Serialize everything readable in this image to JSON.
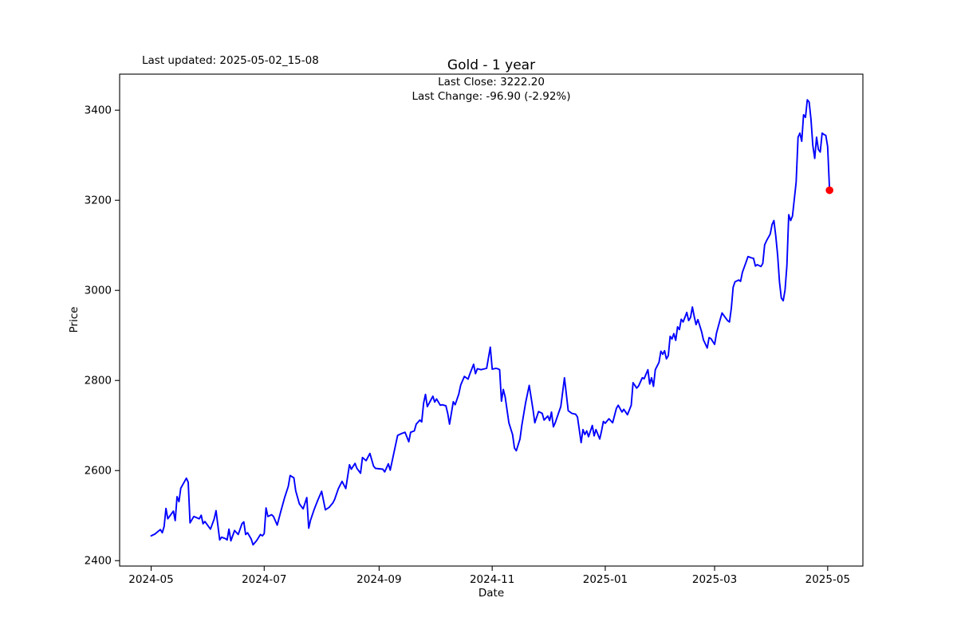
{
  "figure": {
    "last_updated": "Last updated: 2025-05-02_15-08",
    "title": "Gold - 1 year",
    "annotation_line1": "Last Close: 3222.20",
    "annotation_line2": "Last Change: -96.90 (-2.92%)"
  },
  "chart_data": {
    "type": "line",
    "title": "Gold - 1 year",
    "xlabel": "Date",
    "ylabel": "Price",
    "grid": false,
    "legend_position": "none",
    "line_color": "#0000ff",
    "marker_color": "#ff0000",
    "spine_color": "#000000",
    "ylim": [
      2388,
      3480
    ],
    "xlim_dates": [
      "2024-04-14",
      "2025-05-20"
    ],
    "y_ticks": [
      2400,
      2600,
      2800,
      3000,
      3200,
      3400
    ],
    "x_ticks": [
      {
        "date": "2024-05-01",
        "label": "2024-05"
      },
      {
        "date": "2024-07-01",
        "label": "2024-07"
      },
      {
        "date": "2024-09-01",
        "label": "2024-09"
      },
      {
        "date": "2024-11-01",
        "label": "2024-11"
      },
      {
        "date": "2025-01-01",
        "label": "2025-01"
      },
      {
        "date": "2025-03-01",
        "label": "2025-03"
      },
      {
        "date": "2025-05-01",
        "label": "2025-05"
      }
    ],
    "last_point": {
      "date": "2025-05-02",
      "price": 3222.2
    },
    "last_close": 3222.2,
    "last_change": -96.9,
    "last_change_pct": -2.92,
    "series": [
      {
        "name": "Gold",
        "points": [
          [
            "2024-05-01",
            2455
          ],
          [
            "2024-05-03",
            2459
          ],
          [
            "2024-05-06",
            2469
          ],
          [
            "2024-05-07",
            2462
          ],
          [
            "2024-05-08",
            2476
          ],
          [
            "2024-05-09",
            2516
          ],
          [
            "2024-05-10",
            2493
          ],
          [
            "2024-05-13",
            2510
          ],
          [
            "2024-05-14",
            2489
          ],
          [
            "2024-05-15",
            2542
          ],
          [
            "2024-05-16",
            2531
          ],
          [
            "2024-05-17",
            2561
          ],
          [
            "2024-05-20",
            2583
          ],
          [
            "2024-05-21",
            2574
          ],
          [
            "2024-05-22",
            2484
          ],
          [
            "2024-05-24",
            2498
          ],
          [
            "2024-05-27",
            2493
          ],
          [
            "2024-05-28",
            2501
          ],
          [
            "2024-05-29",
            2482
          ],
          [
            "2024-05-30",
            2487
          ],
          [
            "2024-06-02",
            2470
          ],
          [
            "2024-06-04",
            2492
          ],
          [
            "2024-06-05",
            2511
          ],
          [
            "2024-06-07",
            2446
          ],
          [
            "2024-06-08",
            2452
          ],
          [
            "2024-06-10",
            2449
          ],
          [
            "2024-06-11",
            2446
          ],
          [
            "2024-06-12",
            2470
          ],
          [
            "2024-06-13",
            2444
          ],
          [
            "2024-06-15",
            2467
          ],
          [
            "2024-06-17",
            2458
          ],
          [
            "2024-06-19",
            2482
          ],
          [
            "2024-06-20",
            2486
          ],
          [
            "2024-06-21",
            2458
          ],
          [
            "2024-06-22",
            2462
          ],
          [
            "2024-06-24",
            2448
          ],
          [
            "2024-06-25",
            2435
          ],
          [
            "2024-06-27",
            2445
          ],
          [
            "2024-06-29",
            2458
          ],
          [
            "2024-06-30",
            2455
          ],
          [
            "2024-07-01",
            2460
          ],
          [
            "2024-07-02",
            2517
          ],
          [
            "2024-07-03",
            2498
          ],
          [
            "2024-07-05",
            2502
          ],
          [
            "2024-07-06",
            2498
          ],
          [
            "2024-07-08",
            2479
          ],
          [
            "2024-07-10",
            2510
          ],
          [
            "2024-07-12",
            2540
          ],
          [
            "2024-07-14",
            2565
          ],
          [
            "2024-07-15",
            2589
          ],
          [
            "2024-07-17",
            2584
          ],
          [
            "2024-07-18",
            2555
          ],
          [
            "2024-07-20",
            2526
          ],
          [
            "2024-07-22",
            2515
          ],
          [
            "2024-07-24",
            2540
          ],
          [
            "2024-07-25",
            2472
          ],
          [
            "2024-07-26",
            2490
          ],
          [
            "2024-07-28",
            2514
          ],
          [
            "2024-07-30",
            2535
          ],
          [
            "2024-08-01",
            2554
          ],
          [
            "2024-08-03",
            2513
          ],
          [
            "2024-08-05",
            2518
          ],
          [
            "2024-08-07",
            2528
          ],
          [
            "2024-08-08",
            2536
          ],
          [
            "2024-08-10",
            2560
          ],
          [
            "2024-08-12",
            2576
          ],
          [
            "2024-08-14",
            2560
          ],
          [
            "2024-08-16",
            2613
          ],
          [
            "2024-08-17",
            2603
          ],
          [
            "2024-08-19",
            2616
          ],
          [
            "2024-08-20",
            2605
          ],
          [
            "2024-08-22",
            2594
          ],
          [
            "2024-08-23",
            2629
          ],
          [
            "2024-08-25",
            2622
          ],
          [
            "2024-08-26",
            2630
          ],
          [
            "2024-08-27",
            2638
          ],
          [
            "2024-08-29",
            2610
          ],
          [
            "2024-08-30",
            2605
          ],
          [
            "2024-09-01",
            2604
          ],
          [
            "2024-09-03",
            2603
          ],
          [
            "2024-09-04",
            2597
          ],
          [
            "2024-09-06",
            2615
          ],
          [
            "2024-09-07",
            2601
          ],
          [
            "2024-09-09",
            2640
          ],
          [
            "2024-09-11",
            2678
          ],
          [
            "2024-09-13",
            2682
          ],
          [
            "2024-09-15",
            2685
          ],
          [
            "2024-09-17",
            2664
          ],
          [
            "2024-09-18",
            2685
          ],
          [
            "2024-09-20",
            2688
          ],
          [
            "2024-09-21",
            2703
          ],
          [
            "2024-09-23",
            2712
          ],
          [
            "2024-09-24",
            2708
          ],
          [
            "2024-09-25",
            2750
          ],
          [
            "2024-09-26",
            2769
          ],
          [
            "2024-09-27",
            2742
          ],
          [
            "2024-09-30",
            2765
          ],
          [
            "2024-10-01",
            2752
          ],
          [
            "2024-10-02",
            2759
          ],
          [
            "2024-10-04",
            2745
          ],
          [
            "2024-10-05",
            2746
          ],
          [
            "2024-10-07",
            2744
          ],
          [
            "2024-10-08",
            2727
          ],
          [
            "2024-10-09",
            2703
          ],
          [
            "2024-10-11",
            2753
          ],
          [
            "2024-10-12",
            2746
          ],
          [
            "2024-10-14",
            2770
          ],
          [
            "2024-10-15",
            2790
          ],
          [
            "2024-10-17",
            2809
          ],
          [
            "2024-10-19",
            2803
          ],
          [
            "2024-10-20",
            2815
          ],
          [
            "2024-10-22",
            2836
          ],
          [
            "2024-10-23",
            2815
          ],
          [
            "2024-10-24",
            2826
          ],
          [
            "2024-10-26",
            2824
          ],
          [
            "2024-10-28",
            2826
          ],
          [
            "2024-10-29",
            2827
          ],
          [
            "2024-10-31",
            2874
          ],
          [
            "2024-11-01",
            2825
          ],
          [
            "2024-11-03",
            2827
          ],
          [
            "2024-11-04",
            2826
          ],
          [
            "2024-11-05",
            2824
          ],
          [
            "2024-11-06",
            2754
          ],
          [
            "2024-11-07",
            2780
          ],
          [
            "2024-11-08",
            2764
          ],
          [
            "2024-11-10",
            2706
          ],
          [
            "2024-11-12",
            2680
          ],
          [
            "2024-11-13",
            2650
          ],
          [
            "2024-11-14",
            2644
          ],
          [
            "2024-11-16",
            2670
          ],
          [
            "2024-11-17",
            2700
          ],
          [
            "2024-11-19",
            2750
          ],
          [
            "2024-11-21",
            2789
          ],
          [
            "2024-11-23",
            2736
          ],
          [
            "2024-11-24",
            2706
          ],
          [
            "2024-11-26",
            2731
          ],
          [
            "2024-11-28",
            2727
          ],
          [
            "2024-11-29",
            2712
          ],
          [
            "2024-12-01",
            2721
          ],
          [
            "2024-12-02",
            2711
          ],
          [
            "2024-12-03",
            2730
          ],
          [
            "2024-12-04",
            2697
          ],
          [
            "2024-12-05",
            2706
          ],
          [
            "2024-12-07",
            2730
          ],
          [
            "2024-12-08",
            2742
          ],
          [
            "2024-12-10",
            2806
          ],
          [
            "2024-12-12",
            2733
          ],
          [
            "2024-12-14",
            2727
          ],
          [
            "2024-12-16",
            2725
          ],
          [
            "2024-12-17",
            2719
          ],
          [
            "2024-12-19",
            2662
          ],
          [
            "2024-12-20",
            2691
          ],
          [
            "2024-12-21",
            2680
          ],
          [
            "2024-12-22",
            2688
          ],
          [
            "2024-12-23",
            2675
          ],
          [
            "2024-12-25",
            2700
          ],
          [
            "2024-12-26",
            2677
          ],
          [
            "2024-12-27",
            2691
          ],
          [
            "2024-12-29",
            2670
          ],
          [
            "2024-12-30",
            2688
          ],
          [
            "2024-12-31",
            2709
          ],
          [
            "2025-01-01",
            2705
          ],
          [
            "2025-01-03",
            2715
          ],
          [
            "2025-01-05",
            2706
          ],
          [
            "2025-01-07",
            2738
          ],
          [
            "2025-01-08",
            2745
          ],
          [
            "2025-01-10",
            2730
          ],
          [
            "2025-01-11",
            2736
          ],
          [
            "2025-01-13",
            2724
          ],
          [
            "2025-01-15",
            2745
          ],
          [
            "2025-01-16",
            2795
          ],
          [
            "2025-01-18",
            2783
          ],
          [
            "2025-01-19",
            2788
          ],
          [
            "2025-01-21",
            2806
          ],
          [
            "2025-01-22",
            2804
          ],
          [
            "2025-01-24",
            2824
          ],
          [
            "2025-01-25",
            2792
          ],
          [
            "2025-01-26",
            2806
          ],
          [
            "2025-01-27",
            2787
          ],
          [
            "2025-01-28",
            2824
          ],
          [
            "2025-01-30",
            2840
          ],
          [
            "2025-01-31",
            2865
          ],
          [
            "2025-02-01",
            2858
          ],
          [
            "2025-02-02",
            2866
          ],
          [
            "2025-02-03",
            2848
          ],
          [
            "2025-02-04",
            2855
          ],
          [
            "2025-02-05",
            2898
          ],
          [
            "2025-02-06",
            2892
          ],
          [
            "2025-02-07",
            2904
          ],
          [
            "2025-02-08",
            2889
          ],
          [
            "2025-02-09",
            2919
          ],
          [
            "2025-02-10",
            2913
          ],
          [
            "2025-02-11",
            2936
          ],
          [
            "2025-02-12",
            2930
          ],
          [
            "2025-02-14",
            2951
          ],
          [
            "2025-02-15",
            2933
          ],
          [
            "2025-02-16",
            2940
          ],
          [
            "2025-02-17",
            2963
          ],
          [
            "2025-02-18",
            2942
          ],
          [
            "2025-02-19",
            2924
          ],
          [
            "2025-02-20",
            2935
          ],
          [
            "2025-02-22",
            2908
          ],
          [
            "2025-02-23",
            2890
          ],
          [
            "2025-02-25",
            2872
          ],
          [
            "2025-02-26",
            2895
          ],
          [
            "2025-02-27",
            2893
          ],
          [
            "2025-03-01",
            2880
          ],
          [
            "2025-03-02",
            2905
          ],
          [
            "2025-03-04",
            2935
          ],
          [
            "2025-03-05",
            2950
          ],
          [
            "2025-03-06",
            2944
          ],
          [
            "2025-03-08",
            2933
          ],
          [
            "2025-03-09",
            2930
          ],
          [
            "2025-03-10",
            2960
          ],
          [
            "2025-03-11",
            3007
          ],
          [
            "2025-03-12",
            3019
          ],
          [
            "2025-03-14",
            3023
          ],
          [
            "2025-03-15",
            3020
          ],
          [
            "2025-03-16",
            3040
          ],
          [
            "2025-03-18",
            3063
          ],
          [
            "2025-03-19",
            3075
          ],
          [
            "2025-03-21",
            3072
          ],
          [
            "2025-03-22",
            3071
          ],
          [
            "2025-03-23",
            3054
          ],
          [
            "2025-03-24",
            3057
          ],
          [
            "2025-03-26",
            3053
          ],
          [
            "2025-03-27",
            3060
          ],
          [
            "2025-03-28",
            3101
          ],
          [
            "2025-03-29",
            3110
          ],
          [
            "2025-03-31",
            3125
          ],
          [
            "2025-04-01",
            3146
          ],
          [
            "2025-04-02",
            3155
          ],
          [
            "2025-04-03",
            3120
          ],
          [
            "2025-04-04",
            3078
          ],
          [
            "2025-04-05",
            3019
          ],
          [
            "2025-04-06",
            2983
          ],
          [
            "2025-04-07",
            2977
          ],
          [
            "2025-04-08",
            3001
          ],
          [
            "2025-04-09",
            3055
          ],
          [
            "2025-04-10",
            3168
          ],
          [
            "2025-04-11",
            3155
          ],
          [
            "2025-04-12",
            3165
          ],
          [
            "2025-04-14",
            3240
          ],
          [
            "2025-04-15",
            3340
          ],
          [
            "2025-04-16",
            3349
          ],
          [
            "2025-04-17",
            3331
          ],
          [
            "2025-04-18",
            3390
          ],
          [
            "2025-04-19",
            3384
          ],
          [
            "2025-04-20",
            3423
          ],
          [
            "2025-04-21",
            3418
          ],
          [
            "2025-04-22",
            3380
          ],
          [
            "2025-04-23",
            3322
          ],
          [
            "2025-04-24",
            3293
          ],
          [
            "2025-04-25",
            3340
          ],
          [
            "2025-04-26",
            3313
          ],
          [
            "2025-04-27",
            3307
          ],
          [
            "2025-04-28",
            3349
          ],
          [
            "2025-04-29",
            3346
          ],
          [
            "2025-04-30",
            3344
          ],
          [
            "2025-05-01",
            3319.1
          ],
          [
            "2025-05-02",
            3222.2
          ]
        ]
      }
    ]
  }
}
